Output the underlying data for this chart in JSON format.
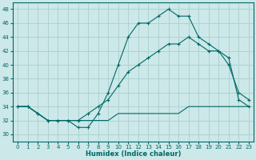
{
  "xlabel": "Humidex (Indice chaleur)",
  "xlim": [
    -0.5,
    23.5
  ],
  "ylim": [
    29,
    49
  ],
  "yticks": [
    30,
    32,
    34,
    36,
    38,
    40,
    42,
    44,
    46,
    48
  ],
  "xticks": [
    0,
    1,
    2,
    3,
    4,
    5,
    6,
    7,
    8,
    9,
    10,
    11,
    12,
    13,
    14,
    15,
    16,
    17,
    18,
    19,
    20,
    21,
    22,
    23
  ],
  "bg_color": "#cce8e8",
  "grid_color": "#aad0d0",
  "line_color": "#006868",
  "line1": [
    34,
    34,
    33,
    32,
    32,
    32,
    31,
    31,
    33,
    36,
    40,
    44,
    46,
    46,
    47,
    48,
    47,
    47,
    44,
    43,
    42,
    40,
    36,
    35
  ],
  "line2": [
    34,
    34,
    33,
    32,
    32,
    32,
    32,
    33,
    34,
    35,
    37,
    39,
    40,
    41,
    42,
    43,
    43,
    44,
    43,
    42,
    42,
    41,
    35,
    34
  ],
  "line3": [
    34,
    34,
    33,
    32,
    32,
    32,
    32,
    32,
    32,
    32,
    33,
    33,
    33,
    33,
    33,
    33,
    33,
    34,
    34,
    34,
    34,
    34,
    34,
    34
  ]
}
